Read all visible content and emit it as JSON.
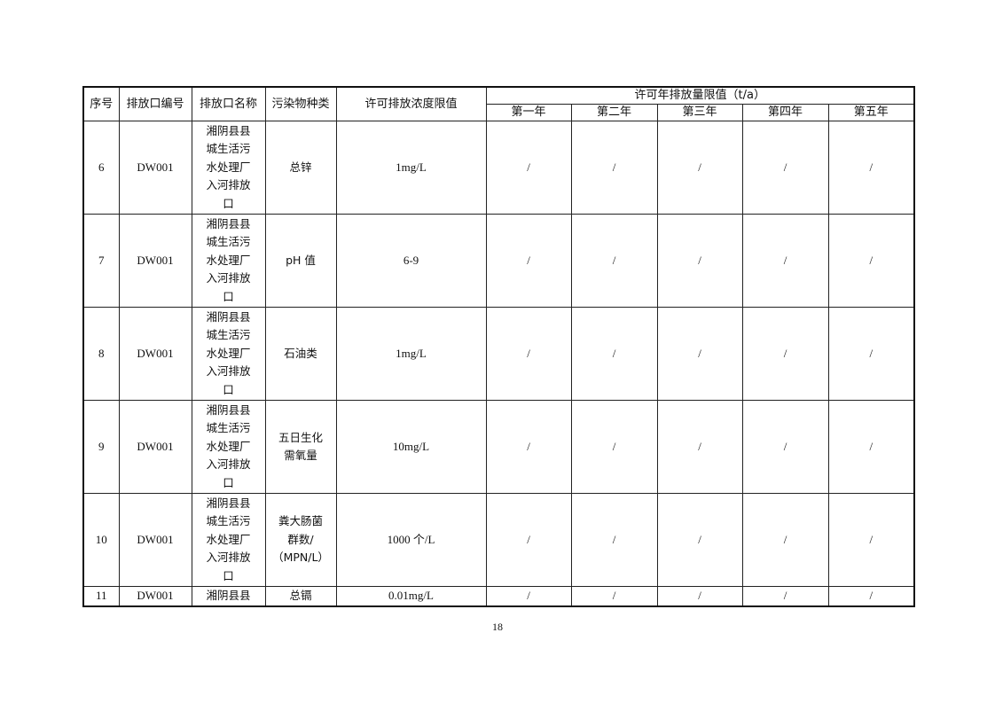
{
  "table": {
    "headers": {
      "seq": "序号",
      "outlet_code": "排放口编号",
      "outlet_name": "排放口名称",
      "pollutant": "污染物种类",
      "concentration": "许可排放浓度限值",
      "annual_limit": "许可年排放量限值（t/a）",
      "years": [
        "第一年",
        "第二年",
        "第三年",
        "第四年",
        "第五年"
      ]
    },
    "rows": [
      {
        "seq": "6",
        "code": "DW001",
        "name": "湘阴县县城生活污水处理厂入河排放口",
        "pollutant": "总锌",
        "concentration": "1mg/L",
        "years": [
          "/",
          "/",
          "/",
          "/",
          "/"
        ]
      },
      {
        "seq": "7",
        "code": "DW001",
        "name": "湘阴县县城生活污水处理厂入河排放口",
        "pollutant": "pH 值",
        "concentration": "6-9",
        "years": [
          "/",
          "/",
          "/",
          "/",
          "/"
        ]
      },
      {
        "seq": "8",
        "code": "DW001",
        "name": "湘阴县县城生活污水处理厂入河排放口",
        "pollutant": "石油类",
        "concentration": "1mg/L",
        "years": [
          "/",
          "/",
          "/",
          "/",
          "/"
        ]
      },
      {
        "seq": "9",
        "code": "DW001",
        "name": "湘阴县县城生活污水处理厂入河排放口",
        "pollutant": "五日生化\n需氧量",
        "concentration": "10mg/L",
        "years": [
          "/",
          "/",
          "/",
          "/",
          "/"
        ]
      },
      {
        "seq": "10",
        "code": "DW001",
        "name": "湘阴县县城生活污水处理厂入河排放口",
        "pollutant": "粪大肠菌\n群数/\n（MPN/L）",
        "concentration": "1000 个/L",
        "years": [
          "/",
          "/",
          "/",
          "/",
          "/"
        ]
      },
      {
        "seq": "11",
        "code": "DW001",
        "name": "湘阴县县",
        "pollutant": "总镉",
        "concentration": "0.01mg/L",
        "years": [
          "/",
          "/",
          "/",
          "/",
          "/"
        ]
      }
    ]
  },
  "page_number": "18"
}
